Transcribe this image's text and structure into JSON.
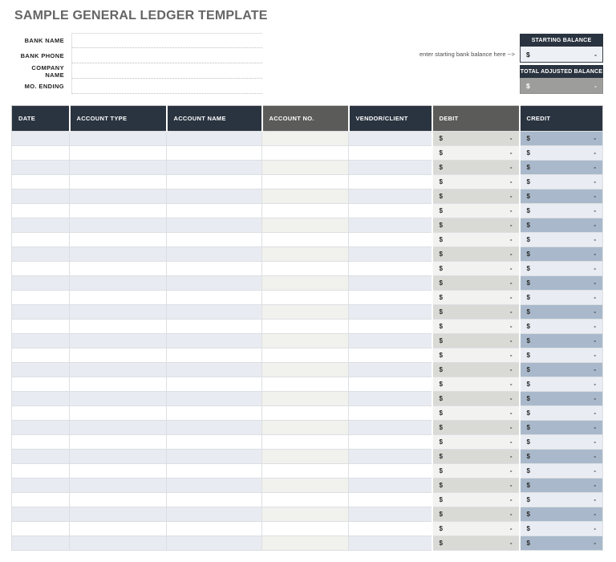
{
  "title": "SAMPLE GENERAL LEDGER TEMPLATE",
  "form": {
    "fields": [
      {
        "label": "BANK NAME",
        "value": ""
      },
      {
        "label": "BANK PHONE",
        "value": ""
      },
      {
        "label": "COMPANY NAME",
        "value": ""
      },
      {
        "label": "MO. ENDING",
        "value": ""
      }
    ]
  },
  "balances": {
    "note": "enter starting bank balance here -->",
    "starting": {
      "label": "STARTING BALANCE",
      "currency": "$",
      "amount": "-"
    },
    "total_adjusted": {
      "label": "TOTAL ADJUSTED BALANCE",
      "currency": "$",
      "amount": "-"
    }
  },
  "table": {
    "currency_symbol": "$",
    "columns": [
      {
        "key": "date",
        "label": "DATE",
        "variant": "navy"
      },
      {
        "key": "type",
        "label": "ACCOUNT TYPE",
        "variant": "navy"
      },
      {
        "key": "name",
        "label": "ACCOUNT NAME",
        "variant": "navy"
      },
      {
        "key": "no",
        "label": "ACCOUNT NO.",
        "variant": "gray"
      },
      {
        "key": "vendor",
        "label": "VENDOR/CLIENT",
        "variant": "navy"
      },
      {
        "key": "debit",
        "label": "DEBIT",
        "variant": "gray"
      },
      {
        "key": "credit",
        "label": "CREDIT",
        "variant": "navy"
      }
    ],
    "rows": [
      {
        "date": "",
        "type": "",
        "name": "",
        "no": "",
        "vendor": "",
        "debit": "-",
        "credit": "-"
      },
      {
        "date": "",
        "type": "",
        "name": "",
        "no": "",
        "vendor": "",
        "debit": "-",
        "credit": "-"
      },
      {
        "date": "",
        "type": "",
        "name": "",
        "no": "",
        "vendor": "",
        "debit": "-",
        "credit": "-"
      },
      {
        "date": "",
        "type": "",
        "name": "",
        "no": "",
        "vendor": "",
        "debit": "-",
        "credit": "-"
      },
      {
        "date": "",
        "type": "",
        "name": "",
        "no": "",
        "vendor": "",
        "debit": "-",
        "credit": "-"
      },
      {
        "date": "",
        "type": "",
        "name": "",
        "no": "",
        "vendor": "",
        "debit": "-",
        "credit": "-"
      },
      {
        "date": "",
        "type": "",
        "name": "",
        "no": "",
        "vendor": "",
        "debit": "-",
        "credit": "-"
      },
      {
        "date": "",
        "type": "",
        "name": "",
        "no": "",
        "vendor": "",
        "debit": "-",
        "credit": "-"
      },
      {
        "date": "",
        "type": "",
        "name": "",
        "no": "",
        "vendor": "",
        "debit": "-",
        "credit": "-"
      },
      {
        "date": "",
        "type": "",
        "name": "",
        "no": "",
        "vendor": "",
        "debit": "-",
        "credit": "-"
      },
      {
        "date": "",
        "type": "",
        "name": "",
        "no": "",
        "vendor": "",
        "debit": "-",
        "credit": "-"
      },
      {
        "date": "",
        "type": "",
        "name": "",
        "no": "",
        "vendor": "",
        "debit": "-",
        "credit": "-"
      },
      {
        "date": "",
        "type": "",
        "name": "",
        "no": "",
        "vendor": "",
        "debit": "-",
        "credit": "-"
      },
      {
        "date": "",
        "type": "",
        "name": "",
        "no": "",
        "vendor": "",
        "debit": "-",
        "credit": "-"
      },
      {
        "date": "",
        "type": "",
        "name": "",
        "no": "",
        "vendor": "",
        "debit": "-",
        "credit": "-"
      },
      {
        "date": "",
        "type": "",
        "name": "",
        "no": "",
        "vendor": "",
        "debit": "-",
        "credit": "-"
      },
      {
        "date": "",
        "type": "",
        "name": "",
        "no": "",
        "vendor": "",
        "debit": "-",
        "credit": "-"
      },
      {
        "date": "",
        "type": "",
        "name": "",
        "no": "",
        "vendor": "",
        "debit": "-",
        "credit": "-"
      },
      {
        "date": "",
        "type": "",
        "name": "",
        "no": "",
        "vendor": "",
        "debit": "-",
        "credit": "-"
      },
      {
        "date": "",
        "type": "",
        "name": "",
        "no": "",
        "vendor": "",
        "debit": "-",
        "credit": "-"
      },
      {
        "date": "",
        "type": "",
        "name": "",
        "no": "",
        "vendor": "",
        "debit": "-",
        "credit": "-"
      },
      {
        "date": "",
        "type": "",
        "name": "",
        "no": "",
        "vendor": "",
        "debit": "-",
        "credit": "-"
      },
      {
        "date": "",
        "type": "",
        "name": "",
        "no": "",
        "vendor": "",
        "debit": "-",
        "credit": "-"
      },
      {
        "date": "",
        "type": "",
        "name": "",
        "no": "",
        "vendor": "",
        "debit": "-",
        "credit": "-"
      },
      {
        "date": "",
        "type": "",
        "name": "",
        "no": "",
        "vendor": "",
        "debit": "-",
        "credit": "-"
      },
      {
        "date": "",
        "type": "",
        "name": "",
        "no": "",
        "vendor": "",
        "debit": "-",
        "credit": "-"
      },
      {
        "date": "",
        "type": "",
        "name": "",
        "no": "",
        "vendor": "",
        "debit": "-",
        "credit": "-"
      },
      {
        "date": "",
        "type": "",
        "name": "",
        "no": "",
        "vendor": "",
        "debit": "-",
        "credit": "-"
      },
      {
        "date": "",
        "type": "",
        "name": "",
        "no": "",
        "vendor": "",
        "debit": "-",
        "credit": "-"
      }
    ]
  },
  "colors": {
    "header_navy": "#2a3440",
    "header_gray": "#5b5b59",
    "row_alt_blue": "#e8ebf1",
    "row_alt_account_no": "#f1f1ee",
    "debit_odd": "#d9d9d6",
    "debit_even": "#f2f2f0",
    "credit_odd": "#a9b9cb",
    "credit_even": "#e9edf3",
    "starting_field_bg": "#edf0f5",
    "total_field_gray": "#9d9d9b",
    "title_gray": "#656565"
  }
}
